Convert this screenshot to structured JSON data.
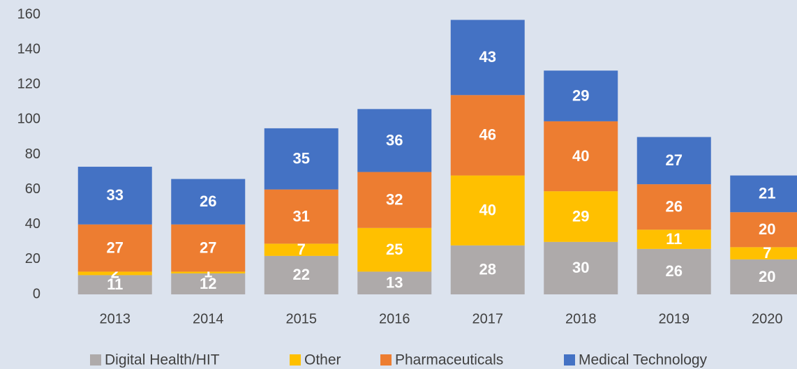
{
  "chart_data": {
    "type": "bar",
    "stacked": true,
    "categories": [
      "2013",
      "2014",
      "2015",
      "2016",
      "2017",
      "2018",
      "2019",
      "2020"
    ],
    "series": [
      {
        "name": "Digital Health/HIT",
        "color": "#aeaaaa",
        "values": [
          11,
          12,
          22,
          13,
          28,
          30,
          26,
          20
        ]
      },
      {
        "name": "Other",
        "color": "#ffc000",
        "values": [
          2,
          1,
          7,
          25,
          40,
          29,
          11,
          7
        ]
      },
      {
        "name": "Pharmaceuticals",
        "color": "#ed7d31",
        "values": [
          27,
          27,
          31,
          32,
          46,
          40,
          26,
          20
        ]
      },
      {
        "name": "Medical Technology",
        "color": "#4472c4",
        "values": [
          33,
          26,
          35,
          36,
          43,
          29,
          27,
          21
        ]
      }
    ],
    "ylim": [
      0,
      160
    ],
    "yticks": [
      0,
      20,
      40,
      60,
      80,
      100,
      120,
      140,
      160
    ],
    "grid": false,
    "legend": "bottom"
  }
}
